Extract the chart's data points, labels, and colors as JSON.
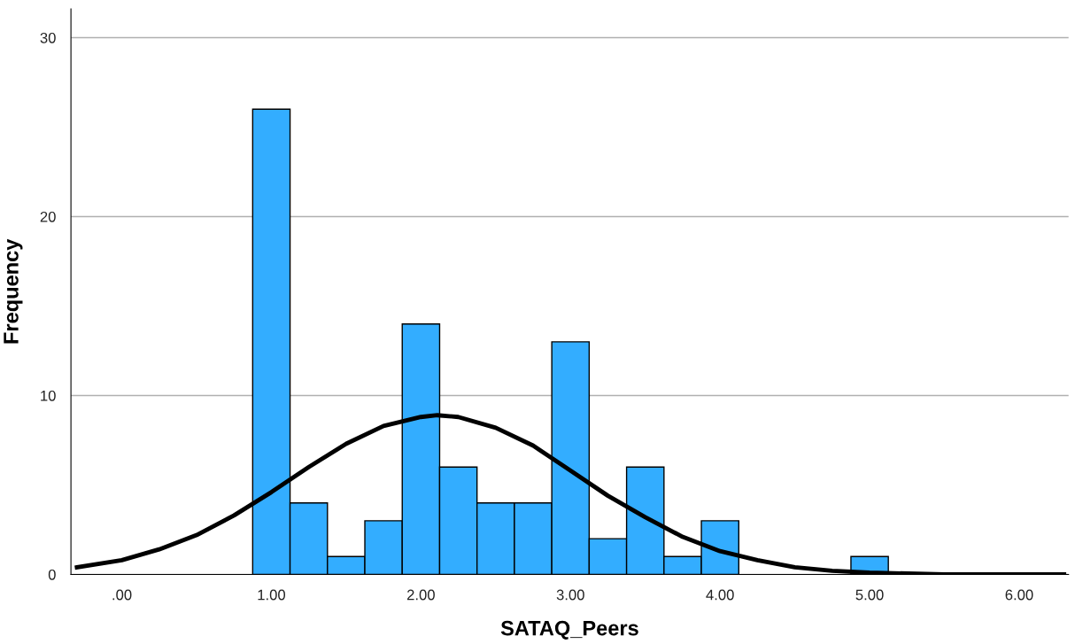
{
  "chart_data": {
    "type": "histogram",
    "xlabel": "SATAQ_Peers",
    "ylabel": "Frequency",
    "bins": [
      0.875,
      1.125,
      1.375,
      1.625,
      1.875,
      2.125,
      2.375,
      2.625,
      2.875,
      3.125,
      3.375,
      3.625,
      3.875,
      4.125,
      4.375,
      4.625,
      4.875,
      5.125
    ],
    "values": [
      26,
      4,
      1,
      3,
      14,
      6,
      4,
      4,
      13,
      2,
      6,
      1,
      3,
      0,
      0,
      0,
      1
    ],
    "color": "#33adff",
    "series": [
      {
        "type": "line",
        "color": "#000000",
        "x": [
          -0.3,
          0,
          0.25,
          0.5,
          0.75,
          1,
          1.25,
          1.5,
          1.75,
          2,
          2.11,
          2.25,
          2.5,
          2.75,
          3,
          3.25,
          3.5,
          3.75,
          4,
          4.25,
          4.5,
          4.75,
          5,
          5.5,
          6,
          6.3
        ],
        "values": [
          0.4,
          0.8,
          1.4,
          2.2,
          3.3,
          4.6,
          6.0,
          7.3,
          8.3,
          8.8,
          8.9,
          8.8,
          8.2,
          7.2,
          5.8,
          4.4,
          3.2,
          2.1,
          1.3,
          0.8,
          0.4,
          0.2,
          0.1,
          0.0,
          0.0,
          0.0
        ]
      }
    ],
    "xlim": [
      -0.34,
      6.33
    ],
    "ylim": [
      0,
      31.6
    ],
    "xticks": [
      {
        "value": 0,
        "label": ".00"
      },
      {
        "value": 1,
        "label": "1.00"
      },
      {
        "value": 2,
        "label": "2.00"
      },
      {
        "value": 3,
        "label": "3.00"
      },
      {
        "value": 4,
        "label": "4.00"
      },
      {
        "value": 5,
        "label": "5.00"
      },
      {
        "value": 6,
        "label": "6.00"
      }
    ],
    "yticks": [
      0,
      10,
      20,
      30
    ],
    "grid": "y"
  }
}
